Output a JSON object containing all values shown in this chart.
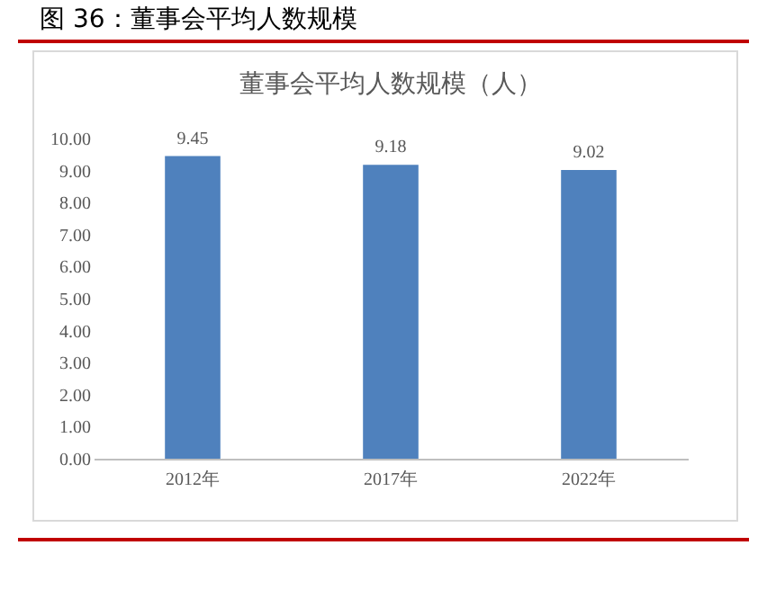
{
  "chart_data": {
    "type": "bar",
    "title": "图 36：董事会平均人数规模",
    "subtitle": "董事会平均人数规模（人）",
    "categories": [
      "2012年",
      "2017年",
      "2022年"
    ],
    "values": [
      9.45,
      9.18,
      9.02
    ],
    "color": "#4f81bd",
    "ylim": [
      0,
      10
    ],
    "yticks": [
      {
        "value": 0,
        "label": "0.00"
      },
      {
        "value": 1,
        "label": "1.00"
      },
      {
        "value": 2,
        "label": "2.00"
      },
      {
        "value": 3,
        "label": "3.00"
      },
      {
        "value": 4,
        "label": "4.00"
      },
      {
        "value": 5,
        "label": "5.00"
      },
      {
        "value": 6,
        "label": "6.00"
      },
      {
        "value": 7,
        "label": "7.00"
      },
      {
        "value": 8,
        "label": "8.00"
      },
      {
        "value": 9,
        "label": "9.00"
      },
      {
        "value": 10,
        "label": "10.00"
      }
    ],
    "data_labels": true
  }
}
